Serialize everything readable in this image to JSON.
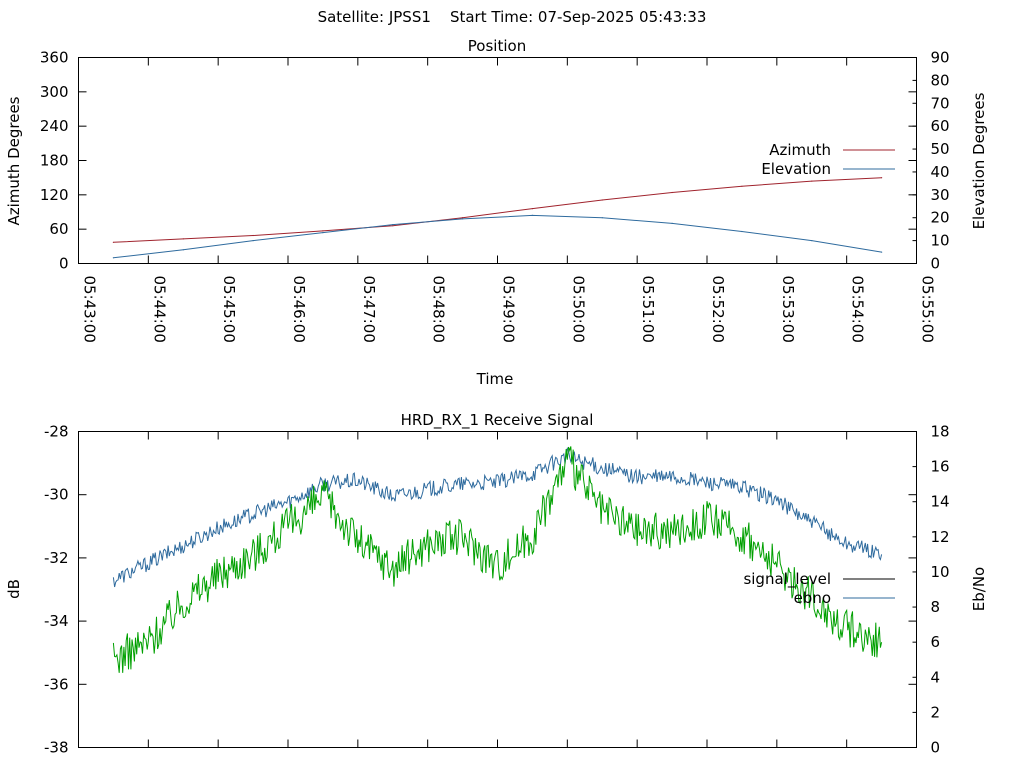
{
  "page_title": "Satellite: JPSS1    Start Time: 07-Sep-2025 05:43:33",
  "chart_data": [
    {
      "type": "line",
      "title": "Position",
      "xlabel": "Time",
      "ylabel": "Azimuth Degrees",
      "y2label": "Elevation Degrees",
      "x_tick_labels": [
        "05:43:00",
        "05:44:00",
        "05:45:00",
        "05:46:00",
        "05:47:00",
        "05:48:00",
        "05:49:00",
        "05:50:00",
        "05:51:00",
        "05:52:00",
        "05:53:00",
        "05:54:00",
        "05:55:00"
      ],
      "xlim": [
        "05:43:00",
        "05:55:00"
      ],
      "ylim": [
        0,
        360
      ],
      "y_ticks": [
        0,
        60,
        120,
        180,
        240,
        300,
        360
      ],
      "y2lim": [
        0,
        90
      ],
      "y2_ticks": [
        0,
        10,
        20,
        30,
        40,
        50,
        60,
        70,
        80,
        90
      ],
      "legend_position": "right",
      "grid": false,
      "series": [
        {
          "name": "Azimuth",
          "axis": "y",
          "color": "#a0232d",
          "x": [
            "05:43:30",
            "05:44:30",
            "05:45:30",
            "05:46:30",
            "05:47:30",
            "05:48:30",
            "05:49:30",
            "05:50:30",
            "05:51:30",
            "05:52:30",
            "05:53:30",
            "05:54:30"
          ],
          "values": [
            37,
            43,
            49,
            57,
            66,
            80,
            96,
            111,
            124,
            135,
            144,
            150
          ]
        },
        {
          "name": "Elevation",
          "axis": "y2",
          "color": "#2f6b9e",
          "x": [
            "05:43:30",
            "05:44:30",
            "05:45:30",
            "05:46:30",
            "05:47:30",
            "05:48:30",
            "05:49:30",
            "05:50:30",
            "05:51:30",
            "05:52:30",
            "05:53:30",
            "05:54:30"
          ],
          "values": [
            2.5,
            6,
            10,
            13.5,
            17,
            19.5,
            21,
            20,
            17.5,
            14,
            10,
            5
          ]
        }
      ]
    },
    {
      "type": "line",
      "title": "HRD_RX_1 Receive Signal",
      "ylabel": "dB",
      "y2label": "Eb/No",
      "xlim": [
        "05:43:00",
        "05:55:00"
      ],
      "ylim": [
        -38,
        -28
      ],
      "y_ticks": [
        -38,
        -36,
        -34,
        -32,
        -30,
        -28
      ],
      "y2lim": [
        0,
        18
      ],
      "y2_ticks": [
        0,
        2,
        4,
        6,
        8,
        10,
        12,
        14,
        16,
        18
      ],
      "legend_position": "right",
      "grid": false,
      "series": [
        {
          "name": "signal_level",
          "axis": "y",
          "color": "#000000",
          "x": [],
          "values": []
        },
        {
          "name": "ebno",
          "axis": "y2",
          "color": "#2f6b9e",
          "x": [
            "05:43:30",
            "05:44:00",
            "05:44:30",
            "05:45:00",
            "05:45:30",
            "05:46:00",
            "05:46:30",
            "05:47:00",
            "05:47:30",
            "05:48:00",
            "05:48:30",
            "05:49:00",
            "05:49:30",
            "05:50:00",
            "05:50:30",
            "05:51:00",
            "05:51:30",
            "05:52:00",
            "05:52:30",
            "05:53:00",
            "05:53:30",
            "05:54:00",
            "05:54:30"
          ],
          "values": [
            9.5,
            10.5,
            11.5,
            12.5,
            13.3,
            14.0,
            15.0,
            15.2,
            14.3,
            14.7,
            15.0,
            15.1,
            15.6,
            16.6,
            15.9,
            15.4,
            15.4,
            15.1,
            14.8,
            14.1,
            12.8,
            11.6,
            11.0
          ]
        },
        {
          "name": "",
          "axis": "y2",
          "color": "#00a000",
          "x": [
            "05:43:30",
            "05:44:00",
            "05:44:30",
            "05:45:00",
            "05:45:30",
            "05:46:00",
            "05:46:30",
            "05:47:00",
            "05:47:30",
            "05:48:00",
            "05:48:30",
            "05:49:00",
            "05:49:30",
            "05:50:00",
            "05:50:30",
            "05:51:00",
            "05:51:30",
            "05:52:00",
            "05:52:30",
            "05:53:00",
            "05:53:30",
            "05:54:00",
            "05:54:30"
          ],
          "values": [
            5.0,
            6.0,
            8.3,
            9.8,
            11.0,
            12.6,
            14.3,
            11.8,
            10.2,
            11.6,
            12.0,
            10.4,
            12.1,
            16.4,
            13.4,
            12.4,
            12.3,
            13.0,
            12.1,
            10.3,
            8.5,
            6.8,
            6.0
          ]
        }
      ]
    }
  ]
}
